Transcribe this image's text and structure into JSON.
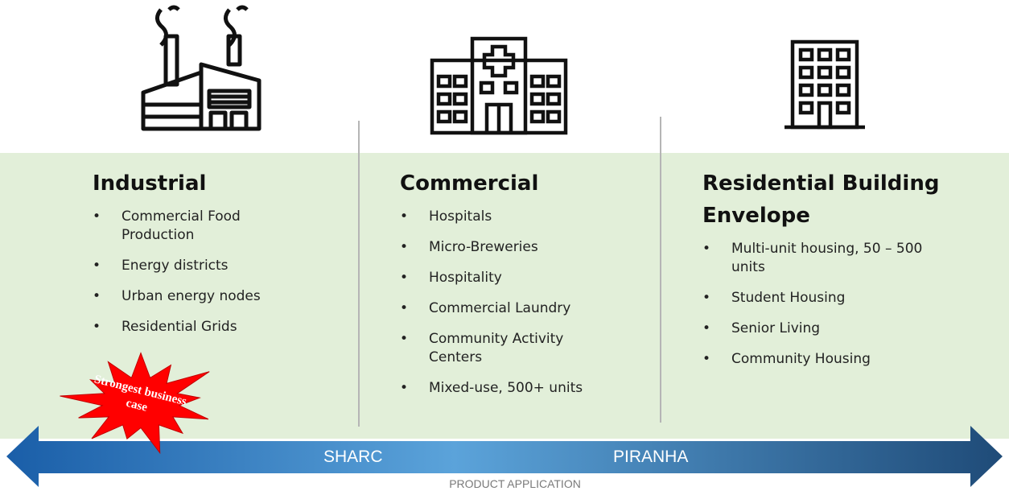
{
  "columns": [
    {
      "title": "Industrial",
      "items": [
        "Commercial Food Production",
        "Energy districts",
        "Urban energy nodes",
        "Residential Grids"
      ]
    },
    {
      "title": "Commercial",
      "items": [
        "Hospitals",
        "Micro-Breweries",
        "Hospitality",
        "Commercial Laundry",
        "Community Activity Centers",
        "Mixed-use, 500+ units"
      ]
    },
    {
      "title": "Residential Building Envelope",
      "items": [
        "Multi-unit housing, 50 – 500 units",
        "Student Housing",
        "Senior Living",
        "Community Housing"
      ]
    }
  ],
  "burst": "Strongest business case",
  "arrow": {
    "left_label": "SHARC",
    "right_label": "PIRANHA",
    "caption": "PRODUCT APPLICATION"
  }
}
